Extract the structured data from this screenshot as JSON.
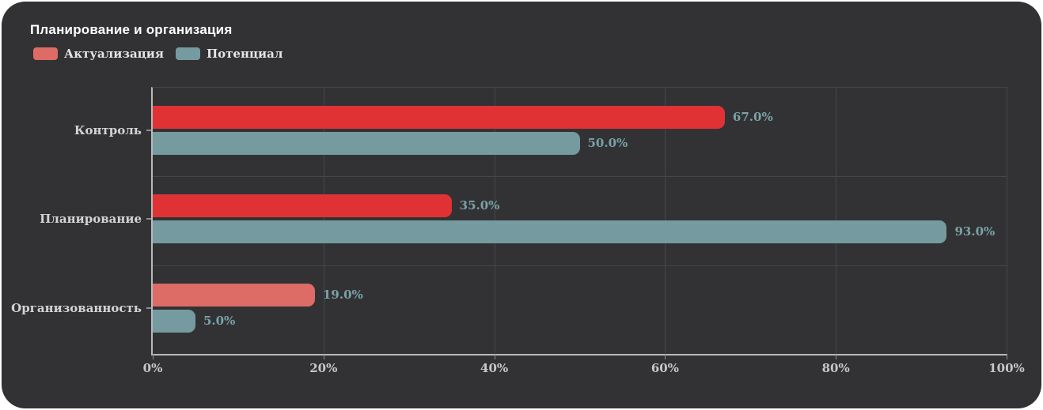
{
  "card": {
    "background": "#323234"
  },
  "chart_data": {
    "type": "bar",
    "orientation": "horizontal",
    "title": "Планирование и организация",
    "title_color": "#ffffff",
    "categories": [
      "Контроль",
      "Планирование",
      "Организованность"
    ],
    "series": [
      {
        "name": "Актуализация",
        "legend_color": "#dd6b66",
        "values": [
          67.0,
          35.0,
          19.0
        ],
        "labels": [
          "67.0%",
          "35.0%",
          "19.0%"
        ],
        "bar_colors": [
          "#e03235",
          "#e03235",
          "#dd6b66"
        ]
      },
      {
        "name": "Потенциал",
        "legend_color": "#759aa0",
        "values": [
          50.0,
          93.0,
          5.0
        ],
        "labels": [
          "50.0%",
          "93.0%",
          "5.0%"
        ],
        "bar_colors": [
          "#759aa0",
          "#759aa0",
          "#759aa0"
        ]
      }
    ],
    "xlim": [
      0,
      100
    ],
    "xticks": [
      {
        "value": 0,
        "label": "0%"
      },
      {
        "value": 20,
        "label": "20%"
      },
      {
        "value": 40,
        "label": "40%"
      },
      {
        "value": 60,
        "label": "60%"
      },
      {
        "value": 80,
        "label": "80%"
      },
      {
        "value": 100,
        "label": "100%"
      }
    ],
    "grid": true,
    "legend_position": "top-left",
    "colors": {
      "value_label": "#7aa2a8",
      "axis_tick_label": "#c8c8c8",
      "category_label": "#d4d4d4",
      "legend_label": "#e6e6e6",
      "grid_line": "#45464c",
      "plot_border": "#45464c",
      "axis_line": "#b9b9b9",
      "tick_mark": "#8f8f8f"
    }
  }
}
